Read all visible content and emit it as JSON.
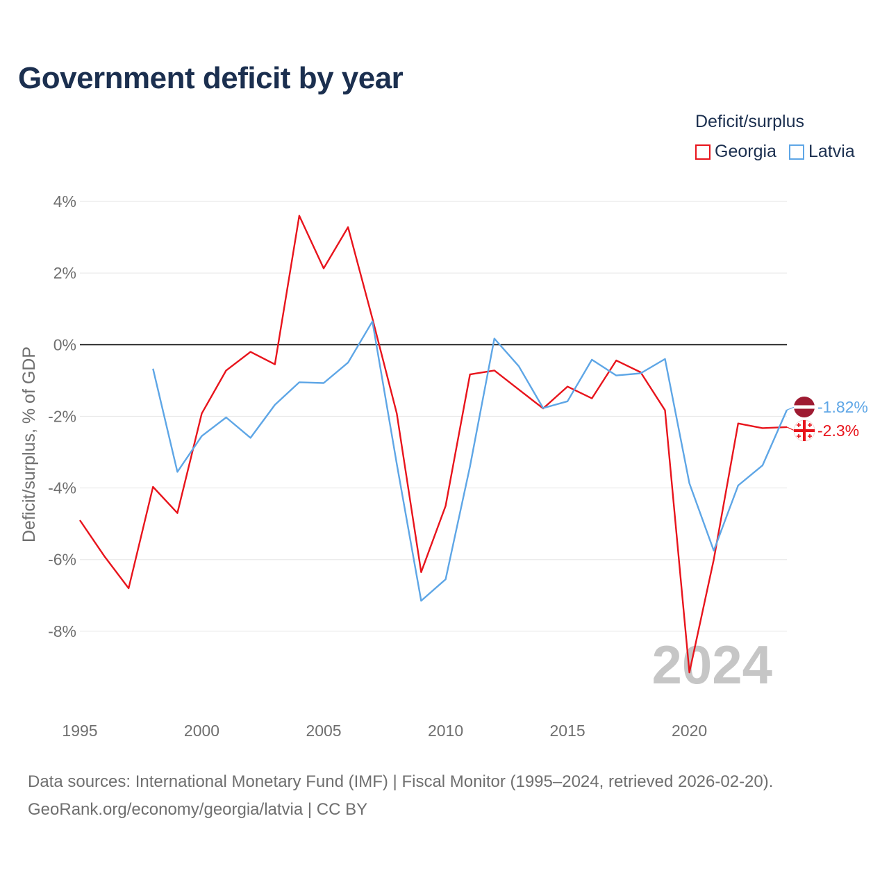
{
  "title": "Government deficit by year",
  "legend": {
    "title": "Deficit/surplus",
    "items": [
      {
        "name": "Georgia",
        "color": "#e8141c"
      },
      {
        "name": "Latvia",
        "color": "#5ea6e6"
      }
    ]
  },
  "chart_data": {
    "type": "line",
    "title": "Government deficit by year",
    "xlabel": "",
    "ylabel": "Deficit/surplus, % of GDP",
    "xlim": [
      1995,
      2024
    ],
    "ylim": [
      -10,
      4
    ],
    "x_ticks": [
      {
        "value": 1995,
        "label": "1995"
      },
      {
        "value": 2000,
        "label": "2000"
      },
      {
        "value": 2005,
        "label": "2005"
      },
      {
        "value": 2010,
        "label": "2010"
      },
      {
        "value": 2015,
        "label": "2015"
      },
      {
        "value": 2020,
        "label": "2020"
      }
    ],
    "y_ticks": [
      {
        "value": 4,
        "label": "4%"
      },
      {
        "value": 2,
        "label": "2%"
      },
      {
        "value": 0,
        "label": "0%"
      },
      {
        "value": -2,
        "label": "-2%"
      },
      {
        "value": -4,
        "label": "-4%"
      },
      {
        "value": -6,
        "label": "-6%"
      },
      {
        "value": -8,
        "label": "-8%"
      }
    ],
    "grid": true,
    "legend_position": "top-right",
    "year_watermark": "2024",
    "series": [
      {
        "name": "Georgia",
        "color": "#e8141c",
        "end_label": "-2.3%",
        "x": [
          1995,
          1996,
          1997,
          1998,
          1999,
          2000,
          2001,
          2002,
          2003,
          2004,
          2005,
          2006,
          2007,
          2008,
          2009,
          2010,
          2011,
          2012,
          2013,
          2014,
          2015,
          2016,
          2017,
          2018,
          2019,
          2020,
          2021,
          2022,
          2023,
          2024
        ],
        "values": [
          -4.9,
          -5.9,
          -6.8,
          -3.97,
          -4.7,
          -1.92,
          -0.72,
          -0.2,
          -0.55,
          3.6,
          2.13,
          3.28,
          0.73,
          -1.92,
          -6.35,
          -4.5,
          -0.83,
          -0.72,
          -1.25,
          -1.78,
          -1.17,
          -1.5,
          -0.44,
          -0.77,
          -1.83,
          -9.15,
          -6.0,
          -2.2,
          -2.33,
          -2.3
        ]
      },
      {
        "name": "Latvia",
        "color": "#5ea6e6",
        "end_label": "-1.82%",
        "x": [
          1998,
          1999,
          2000,
          2001,
          2002,
          2003,
          2004,
          2005,
          2006,
          2007,
          2008,
          2009,
          2010,
          2011,
          2012,
          2013,
          2014,
          2015,
          2016,
          2017,
          2018,
          2019,
          2020,
          2021,
          2022,
          2023,
          2024
        ],
        "values": [
          -0.67,
          -3.55,
          -2.55,
          -2.03,
          -2.6,
          -1.68,
          -1.05,
          -1.07,
          -0.5,
          0.65,
          -3.33,
          -7.15,
          -6.55,
          -3.4,
          0.17,
          -0.6,
          -1.77,
          -1.58,
          -0.42,
          -0.86,
          -0.8,
          -0.4,
          -3.87,
          -5.75,
          -3.93,
          -3.37,
          -1.82
        ]
      }
    ]
  },
  "footer": {
    "line1": "Data sources: International Monetary Fund (IMF) | Fiscal Monitor (1995–2024, retrieved 2026-02-20).",
    "line2": "GeoRank.org/economy/georgia/latvia | CC BY"
  }
}
